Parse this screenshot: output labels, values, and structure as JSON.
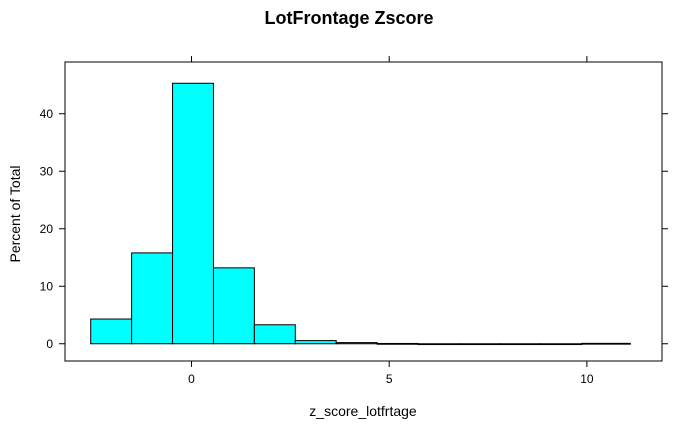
{
  "chart_data": {
    "type": "bar",
    "title": "LotFrontage Zscore",
    "xlabel": "z_score_lotfrtage",
    "ylabel": "Percent of Total",
    "xlim": [
      -3.2,
      11.9
    ],
    "ylim": [
      -3,
      49
    ],
    "x_ticks": [
      0,
      5,
      10
    ],
    "y_ticks": [
      0,
      10,
      20,
      30,
      40
    ],
    "bar_color": "#00ffff",
    "grid": false,
    "bins": [
      {
        "x0": -2.55,
        "x1": -1.515,
        "value": 4.3
      },
      {
        "x0": -1.515,
        "x1": -0.48,
        "value": 15.8
      },
      {
        "x0": -0.48,
        "x1": 0.555,
        "value": 45.3
      },
      {
        "x0": 0.555,
        "x1": 1.59,
        "value": 13.2
      },
      {
        "x0": 1.59,
        "x1": 2.625,
        "value": 3.3
      },
      {
        "x0": 2.625,
        "x1": 3.66,
        "value": 0.55
      },
      {
        "x0": 3.66,
        "x1": 4.695,
        "value": 0.2
      },
      {
        "x0": 4.695,
        "x1": 5.73,
        "value": 0.05
      },
      {
        "x0": 5.73,
        "x1": 6.765,
        "value": 0.0
      },
      {
        "x0": 6.765,
        "x1": 7.8,
        "value": 0.0
      },
      {
        "x0": 7.8,
        "x1": 8.835,
        "value": 0.0
      },
      {
        "x0": 8.835,
        "x1": 9.87,
        "value": 0.0
      },
      {
        "x0": 9.87,
        "x1": 11.1,
        "value": 0.07
      }
    ]
  }
}
